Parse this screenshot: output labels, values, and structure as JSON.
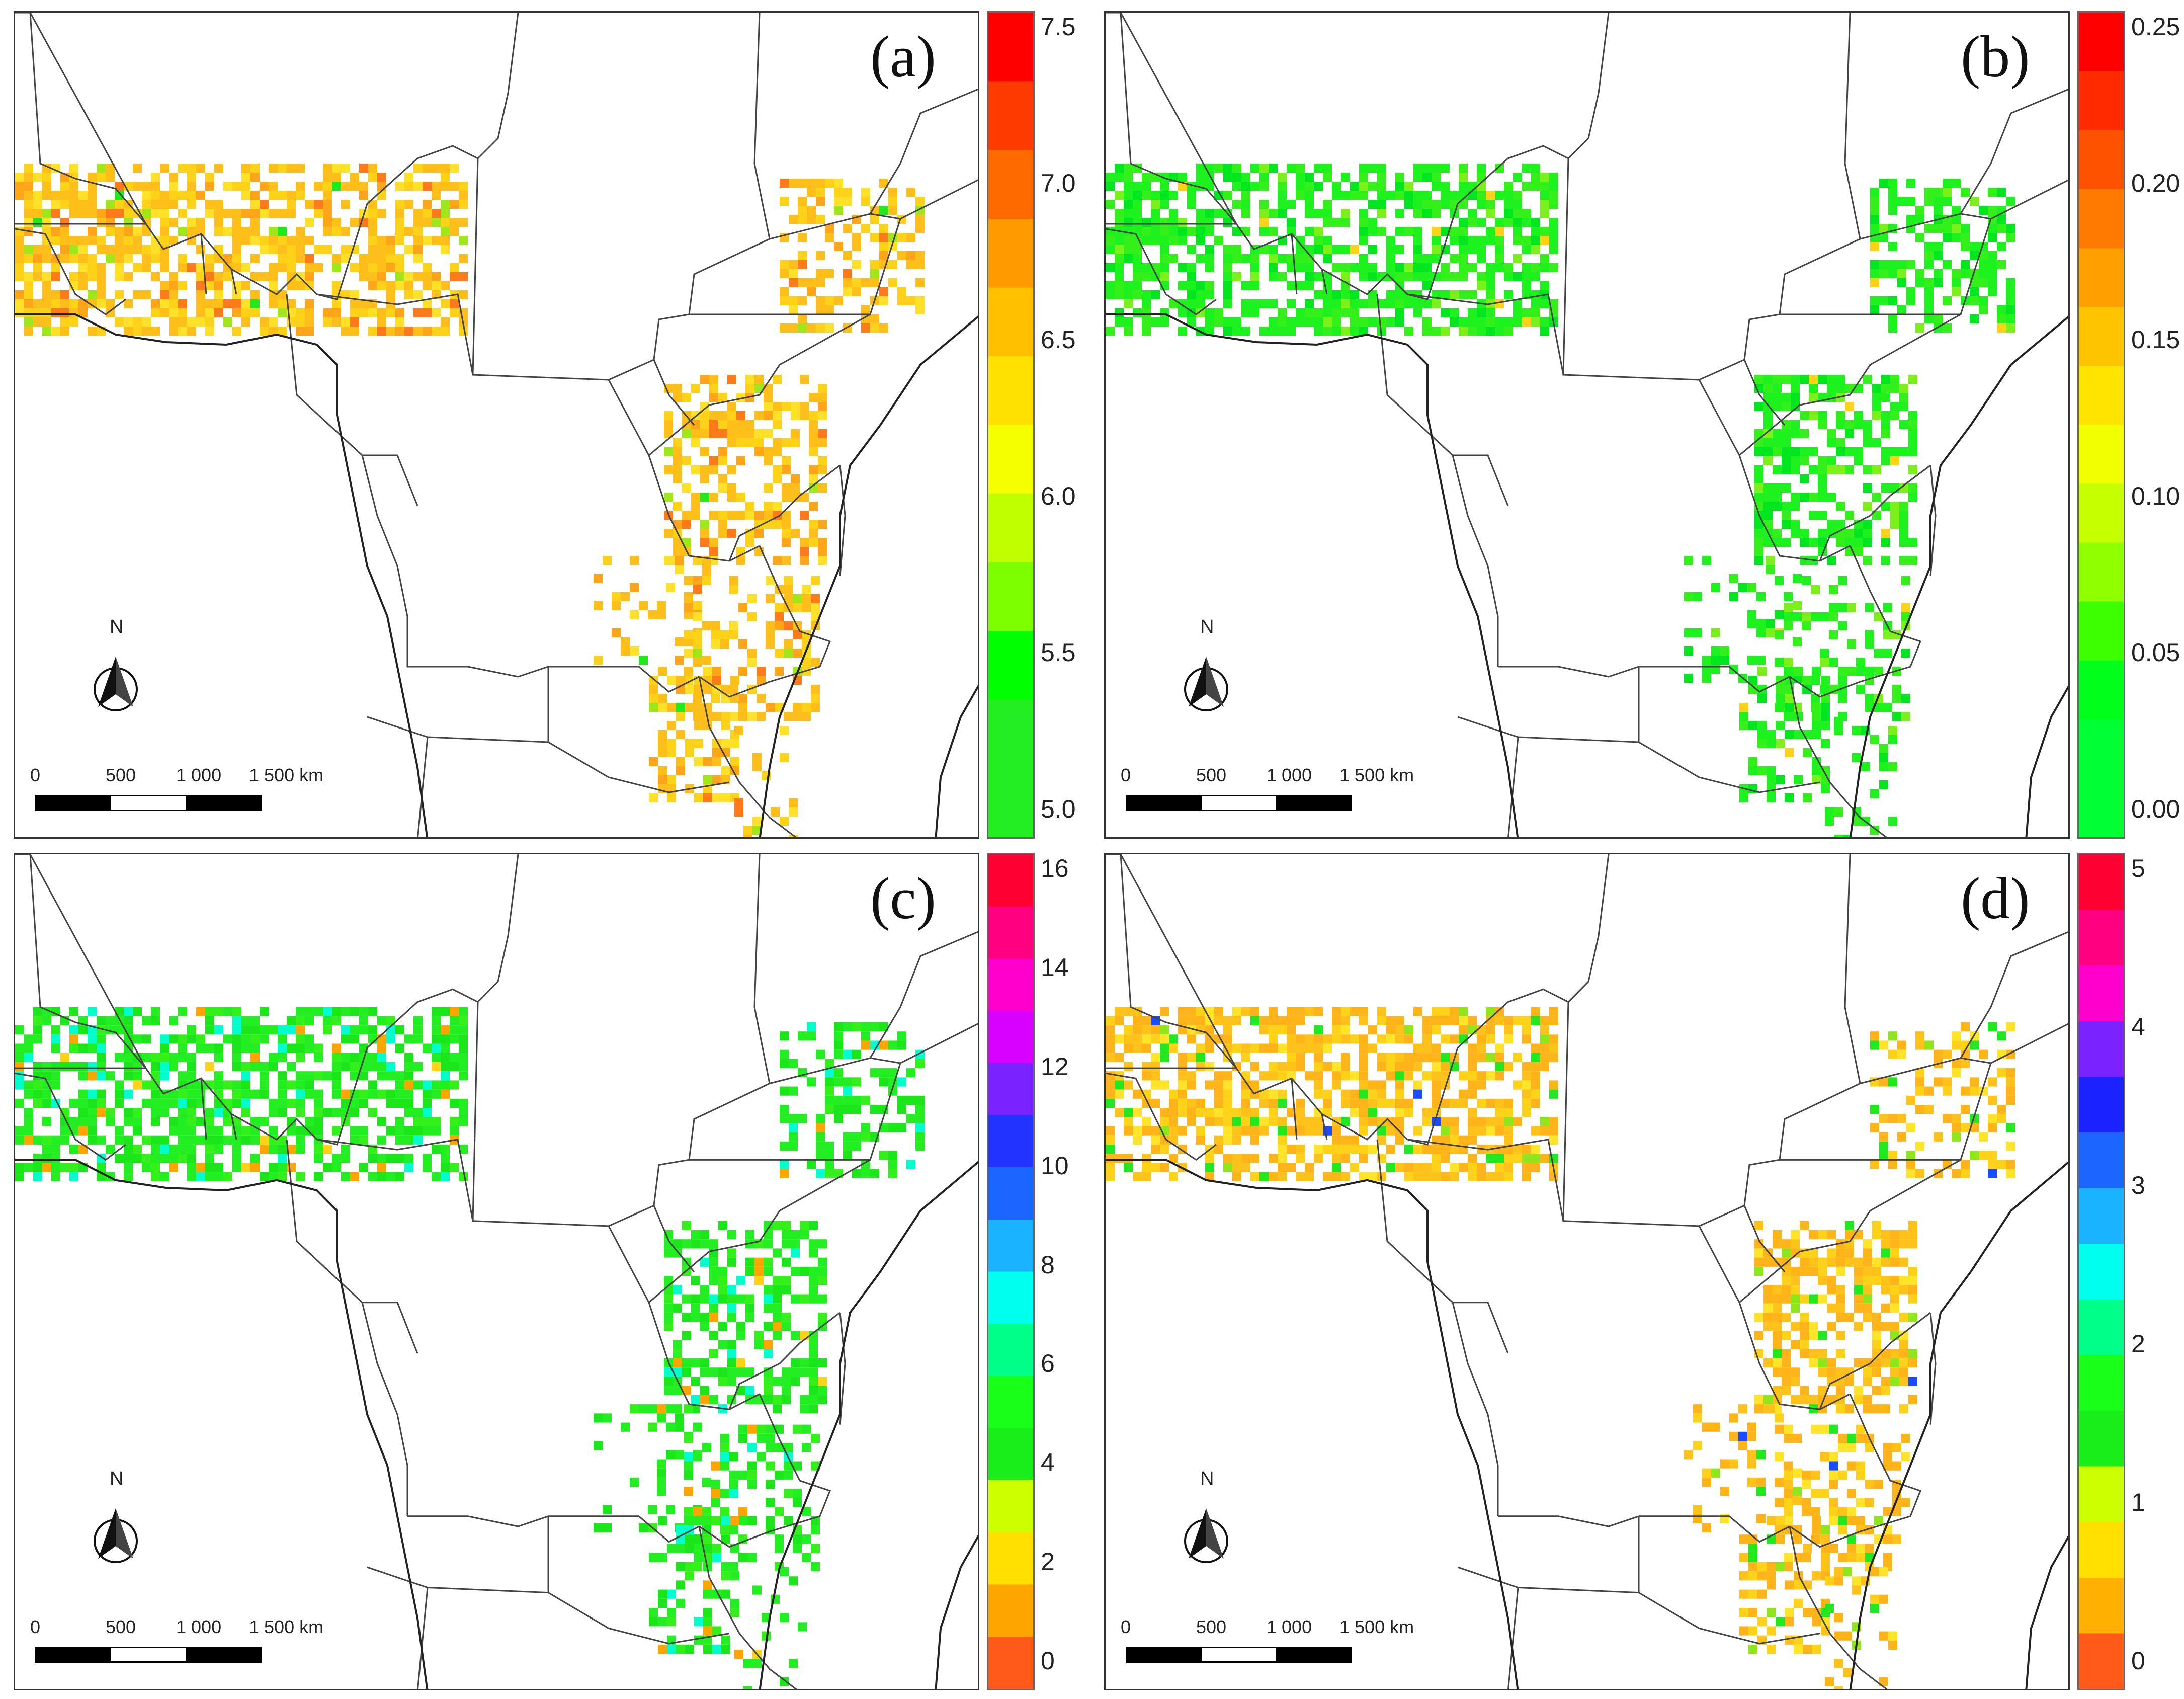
{
  "panels": [
    {
      "id": "a",
      "label": "(a)",
      "legend": {
        "ticks": [
          "7.5",
          "7.0",
          "6.5",
          "6.0",
          "5.5",
          "5.0"
        ],
        "colors": [
          "#ff0000",
          "#ff3b00",
          "#ff6a00",
          "#ff9a00",
          "#ffc000",
          "#ffe100",
          "#f5ff00",
          "#bfff00",
          "#7dff00",
          "#00ff00",
          "#22ee22",
          "#22ee22"
        ]
      },
      "palette": [
        "#ffbf1a",
        "#ffd21a",
        "#ffe12a",
        "#ffa51a",
        "#ff7a1a",
        "#9fe61a",
        "#22e81f"
      ]
    },
    {
      "id": "b",
      "label": "(b)",
      "legend": {
        "ticks": [
          "0.25",
          "0.20",
          "0.15",
          "0.10",
          "0.05",
          "0.00"
        ],
        "colors": [
          "#ff0000",
          "#ff2a00",
          "#ff5200",
          "#ff7a00",
          "#ffa000",
          "#ffc400",
          "#ffe400",
          "#f2ff00",
          "#c6ff00",
          "#90ff00",
          "#3dff00",
          "#00ff1a",
          "#00ff33",
          "#00ff33"
        ]
      },
      "palette": [
        "#1ef21e",
        "#33f01a",
        "#00e61f",
        "#7cf01a",
        "#ffd21a"
      ]
    },
    {
      "id": "c",
      "label": "(c)",
      "legend": {
        "ticks": [
          "16",
          "14",
          "12",
          "10",
          "8",
          "6",
          "4",
          "2",
          "0"
        ],
        "colors": [
          "#ff0033",
          "#ff0080",
          "#ff00cc",
          "#d800ff",
          "#7a22ff",
          "#2233ff",
          "#1a66ff",
          "#1ab3ff",
          "#00ffee",
          "#00ff88",
          "#1aff1a",
          "#1aee1a",
          "#ccff00",
          "#ffe000",
          "#ffa500",
          "#ff5a1a"
        ]
      },
      "palette": [
        "#22ee22",
        "#1ae61a",
        "#33f01a",
        "#00ffcc",
        "#ffa500",
        "#ffd21a"
      ]
    },
    {
      "id": "d",
      "label": "(d)",
      "legend": {
        "ticks": [
          "5",
          "4",
          "3",
          "2",
          "1",
          "0"
        ],
        "colors": [
          "#ff0033",
          "#ff0080",
          "#ff00cc",
          "#7a22ff",
          "#1a22ff",
          "#1a66ff",
          "#1ab3ff",
          "#00ffee",
          "#00ff88",
          "#1aff1a",
          "#1aee1a",
          "#ccff00",
          "#ffe000",
          "#ffb000",
          "#ff5a1a"
        ]
      },
      "palette": [
        "#ffb41a",
        "#ffc21a",
        "#ffd21a",
        "#ffe42a",
        "#22e81f",
        "#8fe61a",
        "#1a4bff"
      ]
    }
  ],
  "north_label": "N",
  "scale": {
    "labels": [
      "0",
      "500",
      "1 000",
      "1 500 km"
    ]
  }
}
